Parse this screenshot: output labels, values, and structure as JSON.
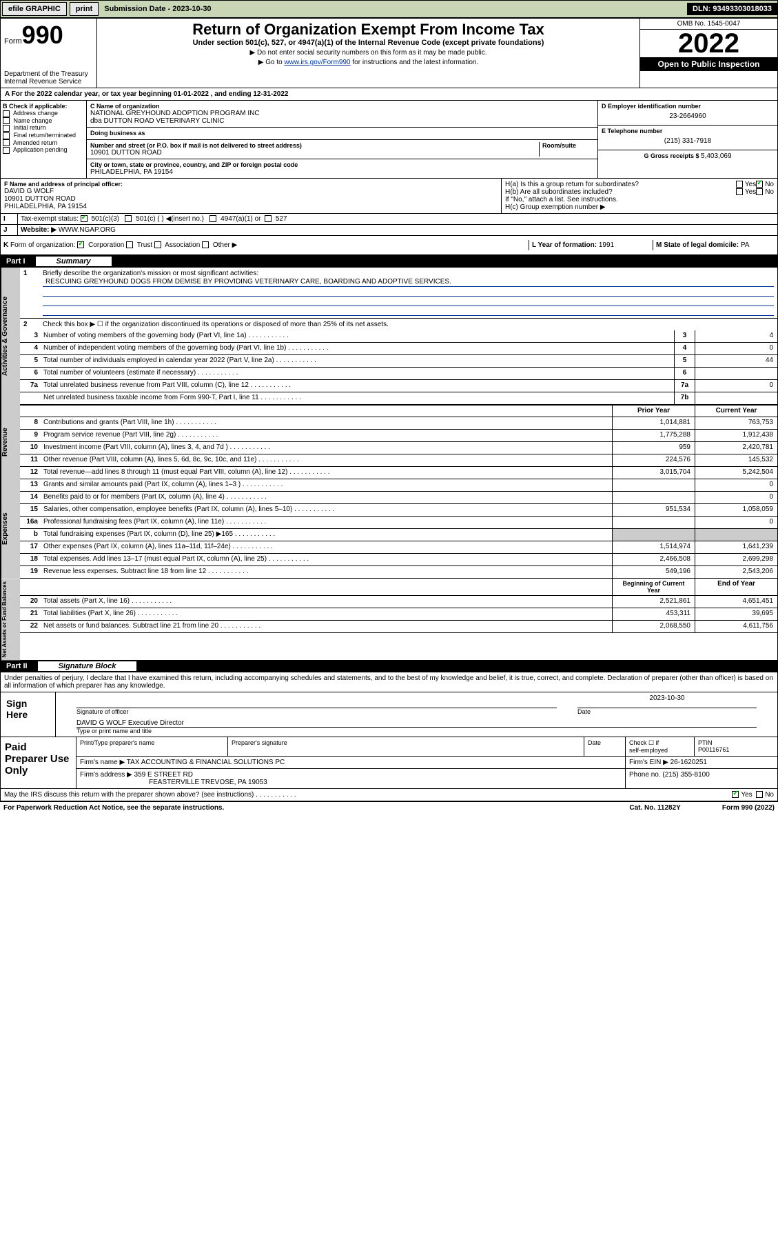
{
  "topbar": {
    "efile": "efile GRAPHIC",
    "print": "print",
    "sub_label": "Submission Date - ",
    "sub_date": "2023-10-30",
    "dln_label": "DLN: ",
    "dln": "93493303018033"
  },
  "header": {
    "form_word": "Form",
    "form_num": "990",
    "title": "Return of Organization Exempt From Income Tax",
    "subtitle": "Under section 501(c), 527, or 4947(a)(1) of the Internal Revenue Code (except private foundations)",
    "note1": "▶ Do not enter social security numbers on this form as it may be made public.",
    "note2_pre": "▶ Go to ",
    "note2_link": "www.irs.gov/Form990",
    "note2_post": " for instructions and the latest information.",
    "dept": "Department of the Treasury",
    "irs": "Internal Revenue Service",
    "omb": "OMB No. 1545-0047",
    "year": "2022",
    "open": "Open to Public Inspection"
  },
  "tax_year": "For the 2022 calendar year, or tax year beginning 01-01-2022   , and ending 12-31-2022",
  "section_b": {
    "b_label": "B Check if applicable:",
    "b_opts": [
      "Address change",
      "Name change",
      "Initial return",
      "Final return/terminated",
      "Amended return",
      "Application pending"
    ],
    "c_label": "C Name of organization",
    "c_name": "NATIONAL GREYHOUND ADOPTION PROGRAM INC",
    "c_dba": "dba DUTTON ROAD VETERINARY CLINIC",
    "dba_label": "Doing business as",
    "addr_label": "Number and street (or P.O. box if mail is not delivered to street address)",
    "room_label": "Room/suite",
    "addr": "10901 DUTTON ROAD",
    "city_label": "City or town, state or province, country, and ZIP or foreign postal code",
    "city": "PHILADELPHIA, PA  19154",
    "d_label": "D Employer identification number",
    "ein": "23-2664960",
    "e_label": "E Telephone number",
    "phone": "(215) 331-7918",
    "g_label": "G Gross receipts $ ",
    "g_val": "5,403,069"
  },
  "section_f": {
    "f_label": "F  Name and address of principal officer:",
    "name": "DAVID G WOLF",
    "addr1": "10901 DUTTON ROAD",
    "addr2": "PHILADELPHIA, PA  19154",
    "ha": "H(a)  Is this a group return for subordinates?",
    "hb": "H(b)  Are all subordinates included?",
    "yes": "Yes",
    "no": "No",
    "hb_note": "If \"No,\" attach a list. See instructions.",
    "hc": "H(c)  Group exemption number ▶"
  },
  "tax_status": {
    "i": "I",
    "label": "Tax-exempt status:",
    "s501c3": "501(c)(3)",
    "s501c": "501(c) (  ) ◀(insert no.)",
    "s4947": "4947(a)(1) or",
    "s527": "527"
  },
  "website": {
    "j": "J",
    "label": "Website: ▶",
    "url": "WWW.NGAP.ORG"
  },
  "form_org": {
    "k": "K",
    "label": "Form of organization:",
    "corp": "Corporation",
    "trust": "Trust",
    "assoc": "Association",
    "other": "Other ▶",
    "l": "L Year of formation: ",
    "l_val": "1991",
    "m": "M State of legal domicile: ",
    "m_val": "PA"
  },
  "part1": {
    "pt": "Part I",
    "sum": "Summary"
  },
  "activities": {
    "vlabel": "Activities & Governance",
    "l1": "Briefly describe the organization's mission or most significant activities:",
    "mission": "RESCUING GREYHOUND DOGS FROM DEMISE BY PROVIDING VETERINARY CARE, BOARDING AND ADOPTIVE SERVICES.",
    "l2": "Check this box ▶ ☐  if the organization discontinued its operations or disposed of more than 25% of its net assets.",
    "lines": [
      {
        "n": "3",
        "t": "Number of voting members of the governing body (Part VI, line 1a)",
        "b": "3",
        "v": "4"
      },
      {
        "n": "4",
        "t": "Number of independent voting members of the governing body (Part VI, line 1b)",
        "b": "4",
        "v": "0"
      },
      {
        "n": "5",
        "t": "Total number of individuals employed in calendar year 2022 (Part V, line 2a)",
        "b": "5",
        "v": "44"
      },
      {
        "n": "6",
        "t": "Total number of volunteers (estimate if necessary)",
        "b": "6",
        "v": ""
      },
      {
        "n": "7a",
        "t": "Total unrelated business revenue from Part VIII, column (C), line 12",
        "b": "7a",
        "v": "0"
      },
      {
        "n": "",
        "t": "Net unrelated business taxable income from Form 990-T, Part I, line 11",
        "b": "7b",
        "v": ""
      }
    ]
  },
  "revenue": {
    "vlabel": "Revenue",
    "hdr_prior": "Prior Year",
    "hdr_curr": "Current Year",
    "lines": [
      {
        "n": "8",
        "t": "Contributions and grants (Part VIII, line 1h)",
        "p": "1,014,881",
        "c": "763,753"
      },
      {
        "n": "9",
        "t": "Program service revenue (Part VIII, line 2g)",
        "p": "1,775,288",
        "c": "1,912,438"
      },
      {
        "n": "10",
        "t": "Investment income (Part VIII, column (A), lines 3, 4, and 7d )",
        "p": "959",
        "c": "2,420,781"
      },
      {
        "n": "11",
        "t": "Other revenue (Part VIII, column (A), lines 5, 6d, 8c, 9c, 10c, and 11e)",
        "p": "224,576",
        "c": "145,532"
      },
      {
        "n": "12",
        "t": "Total revenue—add lines 8 through 11 (must equal Part VIII, column (A), line 12)",
        "p": "3,015,704",
        "c": "5,242,504"
      }
    ]
  },
  "expenses": {
    "vlabel": "Expenses",
    "lines": [
      {
        "n": "13",
        "t": "Grants and similar amounts paid (Part IX, column (A), lines 1–3 )",
        "p": "",
        "c": "0"
      },
      {
        "n": "14",
        "t": "Benefits paid to or for members (Part IX, column (A), line 4)",
        "p": "",
        "c": "0"
      },
      {
        "n": "15",
        "t": "Salaries, other compensation, employee benefits (Part IX, column (A), lines 5–10)",
        "p": "951,534",
        "c": "1,058,059"
      },
      {
        "n": "16a",
        "t": "Professional fundraising fees (Part IX, column (A), line 11e)",
        "p": "",
        "c": "0"
      },
      {
        "n": "b",
        "t": "Total fundraising expenses (Part IX, column (D), line 25) ▶165",
        "p": "grey",
        "c": "grey"
      },
      {
        "n": "17",
        "t": "Other expenses (Part IX, column (A), lines 11a–11d, 11f–24e)",
        "p": "1,514,974",
        "c": "1,641,239"
      },
      {
        "n": "18",
        "t": "Total expenses. Add lines 13–17 (must equal Part IX, column (A), line 25)",
        "p": "2,466,508",
        "c": "2,699,298"
      },
      {
        "n": "19",
        "t": "Revenue less expenses. Subtract line 18 from line 12",
        "p": "549,196",
        "c": "2,543,206"
      }
    ]
  },
  "netassets": {
    "vlabel": "Net Assets or Fund Balances",
    "hdr_begin": "Beginning of Current Year",
    "hdr_end": "End of Year",
    "lines": [
      {
        "n": "20",
        "t": "Total assets (Part X, line 16)",
        "p": "2,521,861",
        "c": "4,651,451"
      },
      {
        "n": "21",
        "t": "Total liabilities (Part X, line 26)",
        "p": "453,311",
        "c": "39,695"
      },
      {
        "n": "22",
        "t": "Net assets or fund balances. Subtract line 21 from line 20",
        "p": "2,068,550",
        "c": "4,611,756"
      }
    ]
  },
  "part2": {
    "pt": "Part II",
    "sb": "Signature Block"
  },
  "penalties": "Under penalties of perjury, I declare that I have examined this return, including accompanying schedules and statements, and to the best of my knowledge and belief, it is true, correct, and complete. Declaration of preparer (other than officer) is based on all information of which preparer has any knowledge.",
  "sign": {
    "here": "Sign Here",
    "sig_of": "Signature of officer",
    "date": "Date",
    "date_val": "2023-10-30",
    "name": "DAVID G WOLF  Executive Director",
    "name_lbl": "Type or print name and title"
  },
  "prep": {
    "label": "Paid Preparer Use Only",
    "h1": "Print/Type preparer's name",
    "h2": "Preparer's signature",
    "h3": "Date",
    "h4a": "Check ☐ if",
    "h4b": "self-employed",
    "h5": "PTIN",
    "ptin": "P00116761",
    "firm_lbl": "Firm's name    ▶",
    "firm": "TAX ACCOUNTING & FINANCIAL SOLUTIONS PC",
    "ein_lbl": "Firm's EIN ▶",
    "ein": "26-1620251",
    "addr_lbl": "Firm's address ▶",
    "addr1": "359 E STREET RD",
    "addr2": "FEASTERVILLE TREVOSE, PA  19053",
    "ph_lbl": "Phone no. ",
    "ph": "(215) 355-8100"
  },
  "discuss": {
    "q": "May the IRS discuss this return with the preparer shown above? (see instructions)",
    "yes": "Yes",
    "no": "No"
  },
  "footer": {
    "left": "For Paperwork Reduction Act Notice, see the separate instructions.",
    "mid": "Cat. No. 11282Y",
    "right": "Form 990 (2022)"
  }
}
